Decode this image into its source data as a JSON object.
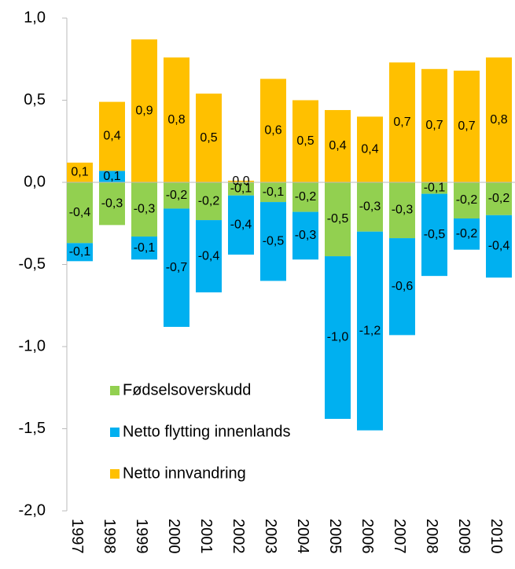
{
  "chart_data": {
    "type": "bar",
    "stacked": true,
    "categories": [
      "1997",
      "1998",
      "1999",
      "2000",
      "2001",
      "2002",
      "2003",
      "2004",
      "2005",
      "2006",
      "2007",
      "2008",
      "2009",
      "2010"
    ],
    "series": [
      {
        "name": "Fødselsoverskudd",
        "color": "#92d050",
        "values": [
          -0.37,
          -0.26,
          -0.33,
          -0.16,
          -0.23,
          -0.08,
          -0.12,
          -0.18,
          -0.45,
          -0.3,
          -0.34,
          -0.07,
          -0.22,
          -0.2
        ],
        "value_labels": [
          "-0,4",
          "-0,3",
          "-0,3",
          "-0,2",
          "-0,2",
          "-0,1",
          "-0,1",
          "-0,2",
          "-0,5",
          "-0,3",
          "-0,3",
          "-0,1",
          "-0,2",
          "-0,2"
        ]
      },
      {
        "name": "Netto flytting innenlands",
        "color": "#00b0f0",
        "values": [
          -0.11,
          0.07,
          -0.14,
          -0.72,
          -0.44,
          -0.36,
          -0.48,
          -0.29,
          -0.99,
          -1.21,
          -0.59,
          -0.5,
          -0.19,
          -0.38
        ],
        "value_labels": [
          "-0,1",
          "0,1",
          "-0,1",
          "-0,7",
          "-0,4",
          "-0,4",
          "-0,5",
          "-0,3",
          "-1,0",
          "-1,2",
          "-0,6",
          "-0,5",
          "-0,2",
          "-0,4"
        ]
      },
      {
        "name": "Netto innvandring",
        "color": "#ffc000",
        "values": [
          0.12,
          0.42,
          0.87,
          0.76,
          0.54,
          0.01,
          0.63,
          0.5,
          0.44,
          0.4,
          0.73,
          0.69,
          0.68,
          0.76
        ],
        "value_labels": [
          "0,1",
          "0,4",
          "0,9",
          "0,8",
          "0,5",
          "0,0",
          "0,6",
          "0,5",
          "0,4",
          "0,4",
          "0,7",
          "0,7",
          "0,7",
          "0,8"
        ]
      }
    ],
    "ylim": [
      -2.0,
      1.0
    ],
    "yticks": [
      {
        "value": -2.0,
        "label": "-2,0"
      },
      {
        "value": -1.5,
        "label": "-1,5"
      },
      {
        "value": -1.0,
        "label": "-1,0"
      },
      {
        "value": -0.5,
        "label": "-0,5"
      },
      {
        "value": 0.0,
        "label": "0,0"
      },
      {
        "value": 0.5,
        "label": "0,5"
      },
      {
        "value": 1.0,
        "label": "1,0"
      }
    ],
    "legend": "lower left"
  }
}
